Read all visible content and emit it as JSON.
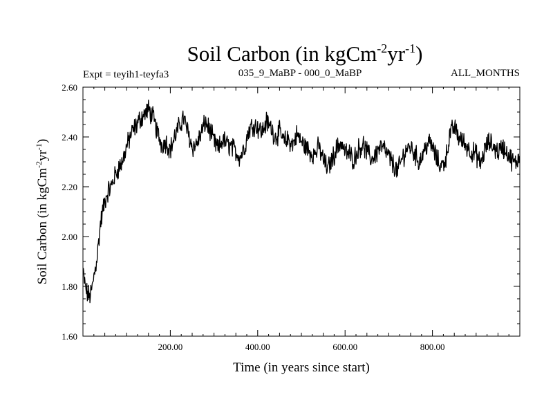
{
  "chart_data": {
    "type": "line",
    "title": {
      "text": "Soil Carbon (in kgCm",
      "sup1": "-2",
      "mid": "yr",
      "sup2": "-1",
      "close": ")"
    },
    "header": {
      "experiment": "Expt = teyih1-teyfa3",
      "period": "035_9_MaBP - 000_0_MaBP",
      "months": "ALL_MONTHS"
    },
    "xlabel": "Time (in years since start)",
    "ylabel": {
      "text": "Soil Carbon (in kgCm",
      "sup1": "-2",
      "mid": "yr",
      "sup2": "-1",
      "close": ")"
    },
    "xlim": [
      0,
      1000
    ],
    "ylim": [
      1.6,
      2.6
    ],
    "x_ticks": [
      200,
      400,
      600,
      800
    ],
    "x_tick_labels": [
      "200.00",
      "400.00",
      "600.00",
      "800.00"
    ],
    "y_ticks": [
      1.6,
      1.8,
      2.0,
      2.2,
      2.4,
      2.6
    ],
    "y_tick_labels": [
      "1.60",
      "1.80",
      "2.00",
      "2.20",
      "2.40",
      "2.60"
    ],
    "line_color": "#000000",
    "series": [
      {
        "name": "Soil Carbon",
        "x": [
          0,
          5,
          10,
          15,
          20,
          25,
          30,
          35,
          40,
          45,
          50,
          55,
          60,
          65,
          70,
          75,
          80,
          90,
          100,
          110,
          120,
          130,
          140,
          150,
          160,
          170,
          180,
          190,
          200,
          210,
          220,
          230,
          240,
          250,
          260,
          270,
          280,
          290,
          300,
          310,
          320,
          330,
          340,
          350,
          360,
          370,
          380,
          390,
          400,
          410,
          420,
          430,
          440,
          450,
          460,
          470,
          480,
          490,
          500,
          510,
          520,
          530,
          540,
          550,
          560,
          570,
          580,
          590,
          600,
          610,
          620,
          630,
          640,
          650,
          660,
          670,
          680,
          690,
          700,
          710,
          720,
          730,
          740,
          750,
          760,
          770,
          780,
          790,
          800,
          810,
          820,
          830,
          840,
          850,
          860,
          870,
          880,
          890,
          900,
          910,
          920,
          930,
          940,
          950,
          960,
          970,
          980,
          990,
          1000
        ],
        "values": [
          1.86,
          1.8,
          1.77,
          1.76,
          1.78,
          1.84,
          1.89,
          1.96,
          2.05,
          2.1,
          2.14,
          2.17,
          2.19,
          2.2,
          2.23,
          2.25,
          2.27,
          2.3,
          2.36,
          2.41,
          2.44,
          2.47,
          2.49,
          2.51,
          2.48,
          2.42,
          2.37,
          2.38,
          2.35,
          2.4,
          2.44,
          2.48,
          2.42,
          2.36,
          2.37,
          2.41,
          2.46,
          2.43,
          2.38,
          2.35,
          2.39,
          2.37,
          2.36,
          2.34,
          2.32,
          2.36,
          2.43,
          2.45,
          2.44,
          2.42,
          2.46,
          2.44,
          2.4,
          2.42,
          2.38,
          2.39,
          2.37,
          2.41,
          2.38,
          2.36,
          2.34,
          2.33,
          2.36,
          2.31,
          2.27,
          2.31,
          2.35,
          2.38,
          2.34,
          2.33,
          2.31,
          2.35,
          2.37,
          2.34,
          2.31,
          2.33,
          2.36,
          2.35,
          2.32,
          2.29,
          2.26,
          2.31,
          2.35,
          2.36,
          2.33,
          2.3,
          2.34,
          2.38,
          2.36,
          2.31,
          2.28,
          2.31,
          2.41,
          2.44,
          2.4,
          2.38,
          2.36,
          2.34,
          2.33,
          2.29,
          2.35,
          2.38,
          2.36,
          2.34,
          2.36,
          2.34,
          2.31,
          2.29,
          2.33
        ]
      }
    ]
  }
}
